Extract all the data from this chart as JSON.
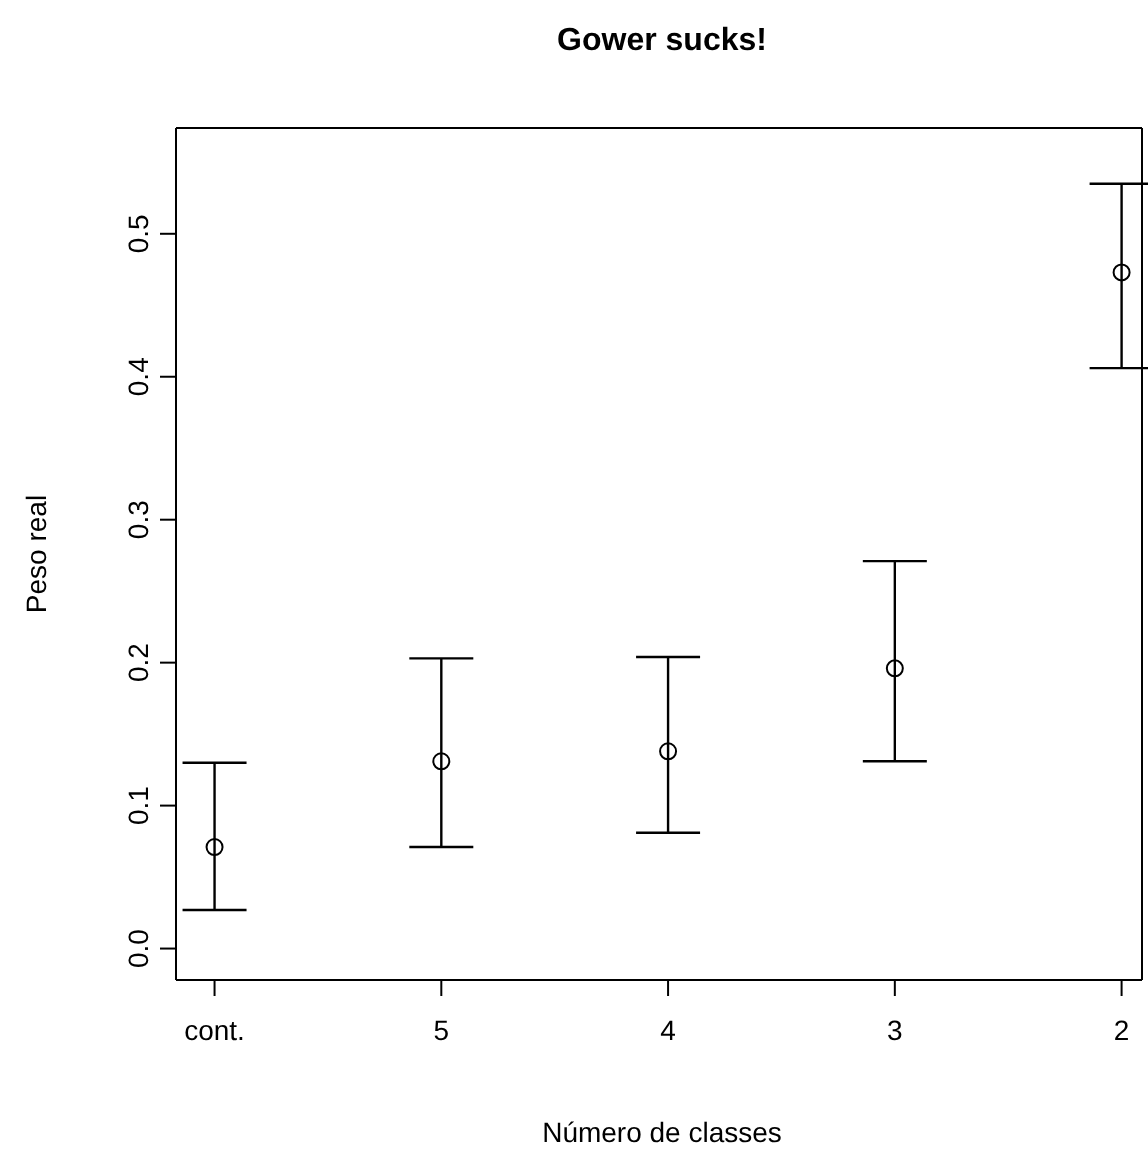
{
  "chart_data": {
    "type": "scatter",
    "title": "Gower sucks!",
    "xlabel": "Número de classes",
    "ylabel": "Peso real",
    "categories": [
      "cont.",
      "5",
      "4",
      "3",
      "2"
    ],
    "values": [
      0.071,
      0.131,
      0.138,
      0.196,
      0.473
    ],
    "errors": [
      [
        0.027,
        0.13
      ],
      [
        0.071,
        0.203
      ],
      [
        0.081,
        0.204
      ],
      [
        0.131,
        0.271
      ],
      [
        0.406,
        0.535
      ]
    ],
    "color": "#000000",
    "marker": "circle",
    "ylim": [
      -0.022,
      0.574
    ],
    "yticks": [
      {
        "value": 0,
        "label": "0.0"
      },
      0.1,
      0.2,
      0.3,
      0.4,
      0.5
    ],
    "grid": false,
    "legend": false
  }
}
